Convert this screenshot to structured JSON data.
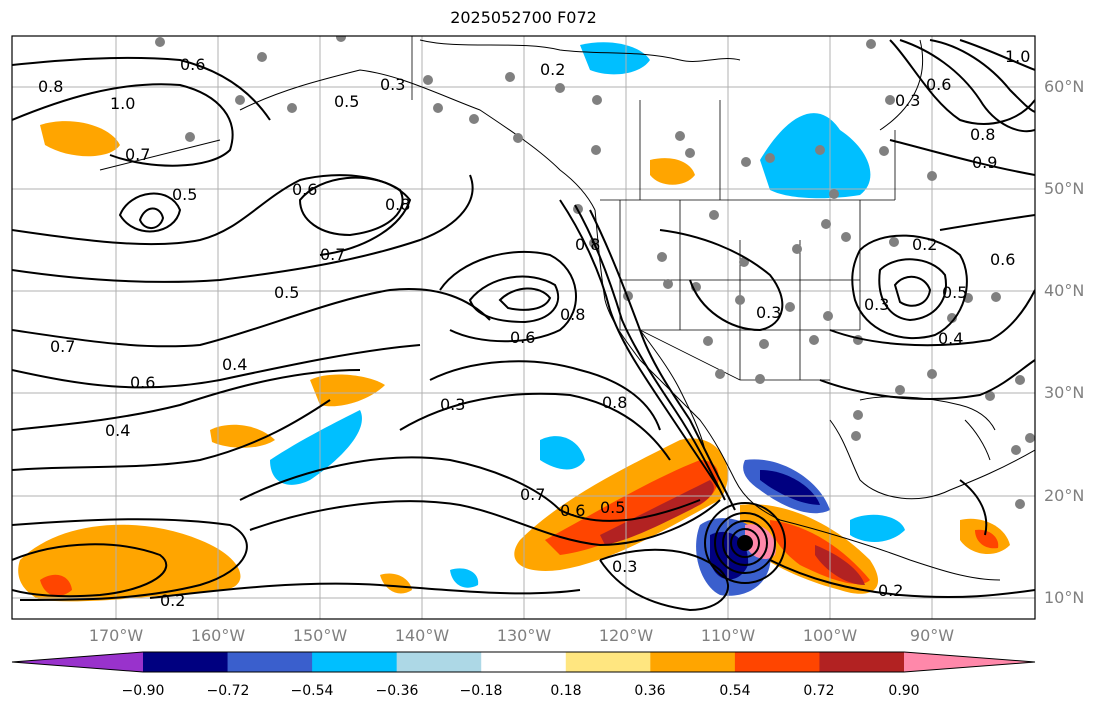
{
  "title": "2025052700 F072",
  "map": {
    "projection": "platecarree",
    "lon_range": [
      -179,
      -79
    ],
    "lat_range": [
      7.5,
      65
    ],
    "gridlines": true,
    "field": "contour lines labelled 0.2–1.0 over filled shading"
  },
  "lat_ticks": [
    "60°N",
    "50°N",
    "40°N",
    "30°N",
    "20°N",
    "10°N"
  ],
  "lon_ticks": [
    "170°W",
    "160°W",
    "150°W",
    "140°W",
    "130°W",
    "120°W",
    "110°W",
    "100°W",
    "90°W"
  ],
  "contour_labels": [
    "0.6",
    "0.8",
    "1.0",
    "0.7",
    "0.5",
    "0.3",
    "0.2",
    "0.5",
    "0.6",
    "0.8",
    "0.7",
    "0.5",
    "0.7",
    "0.6",
    "0.4",
    "0.4",
    "0.8",
    "0.6",
    "0.3",
    "0.8",
    "0.7",
    "0.6",
    "0.5",
    "0.3",
    "0.2",
    "0.3",
    "0.4",
    "0.3",
    "0.2",
    "0.6",
    "0.8",
    "0.5",
    "1.0",
    "0.3",
    "0.6",
    "0.8",
    "0.9",
    "0.2"
  ],
  "station_markers": "grey dots",
  "storm_center_marker": "black dot",
  "colorbar": {
    "colors": [
      "#9932cc",
      "#000080",
      "#3a5fcd",
      "#00bfff",
      "#add8e6",
      "#ffffff",
      "#ffe680",
      "#ffa500",
      "#ff4500",
      "#b22222",
      "#ff88aa"
    ],
    "tick_labels": [
      "−0.90",
      "−0.72",
      "−0.54",
      "−0.36",
      "−0.18",
      "0.18",
      "0.36",
      "0.54",
      "0.72",
      "0.90"
    ],
    "extend": "both"
  }
}
